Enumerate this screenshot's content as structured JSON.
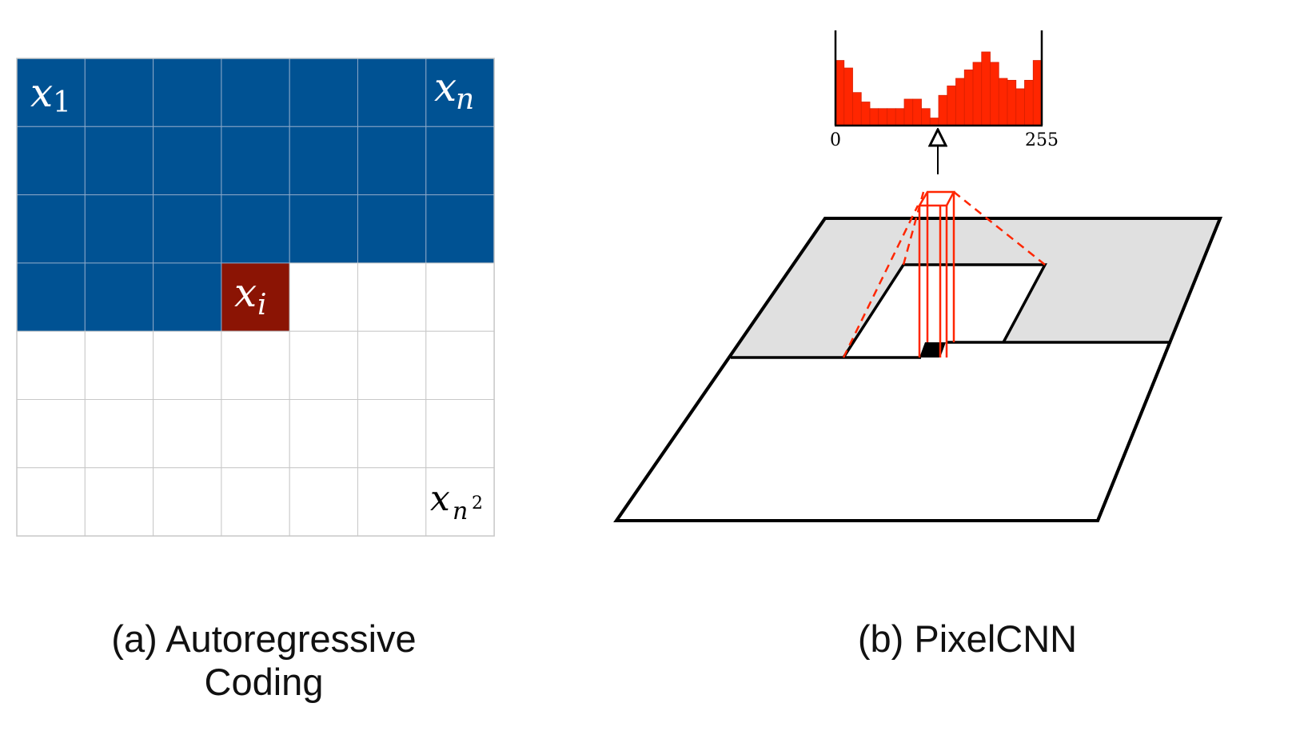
{
  "panel_a": {
    "grid_size": 7,
    "filled_rows_full": 3,
    "filled_cells_partial_row": 3,
    "current_cell": {
      "row": 3,
      "col": 3
    },
    "labels": {
      "first": {
        "base": "x",
        "sub": "1"
      },
      "last_in_row": {
        "base": "x",
        "sub": "n"
      },
      "current": {
        "base": "x",
        "sub": "i"
      },
      "last": {
        "base": "x",
        "sub": "n",
        "sup": "2"
      }
    },
    "caption_line1": "(a) Autoregressive",
    "caption_line2": "Coding",
    "colors": {
      "context": "#005293",
      "current": "#8b1404",
      "empty": "#ffffff",
      "grid": "#c8c8c8"
    }
  },
  "panel_b": {
    "histogram": {
      "values": [
        0.69,
        0.61,
        0.35,
        0.25,
        0.18,
        0.18,
        0.18,
        0.18,
        0.28,
        0.28,
        0.18,
        0.08,
        0.32,
        0.42,
        0.5,
        0.59,
        0.67,
        0.78,
        0.67,
        0.5,
        0.48,
        0.39,
        0.48,
        0.69
      ],
      "x_min_label": "0",
      "x_max_label": "255"
    },
    "caption": "(b) PixelCNN",
    "colors": {
      "bars": "#ff2600",
      "plane": "#ffffff",
      "context_region": "#e0e0e0",
      "receptive": "#ff2600"
    }
  }
}
